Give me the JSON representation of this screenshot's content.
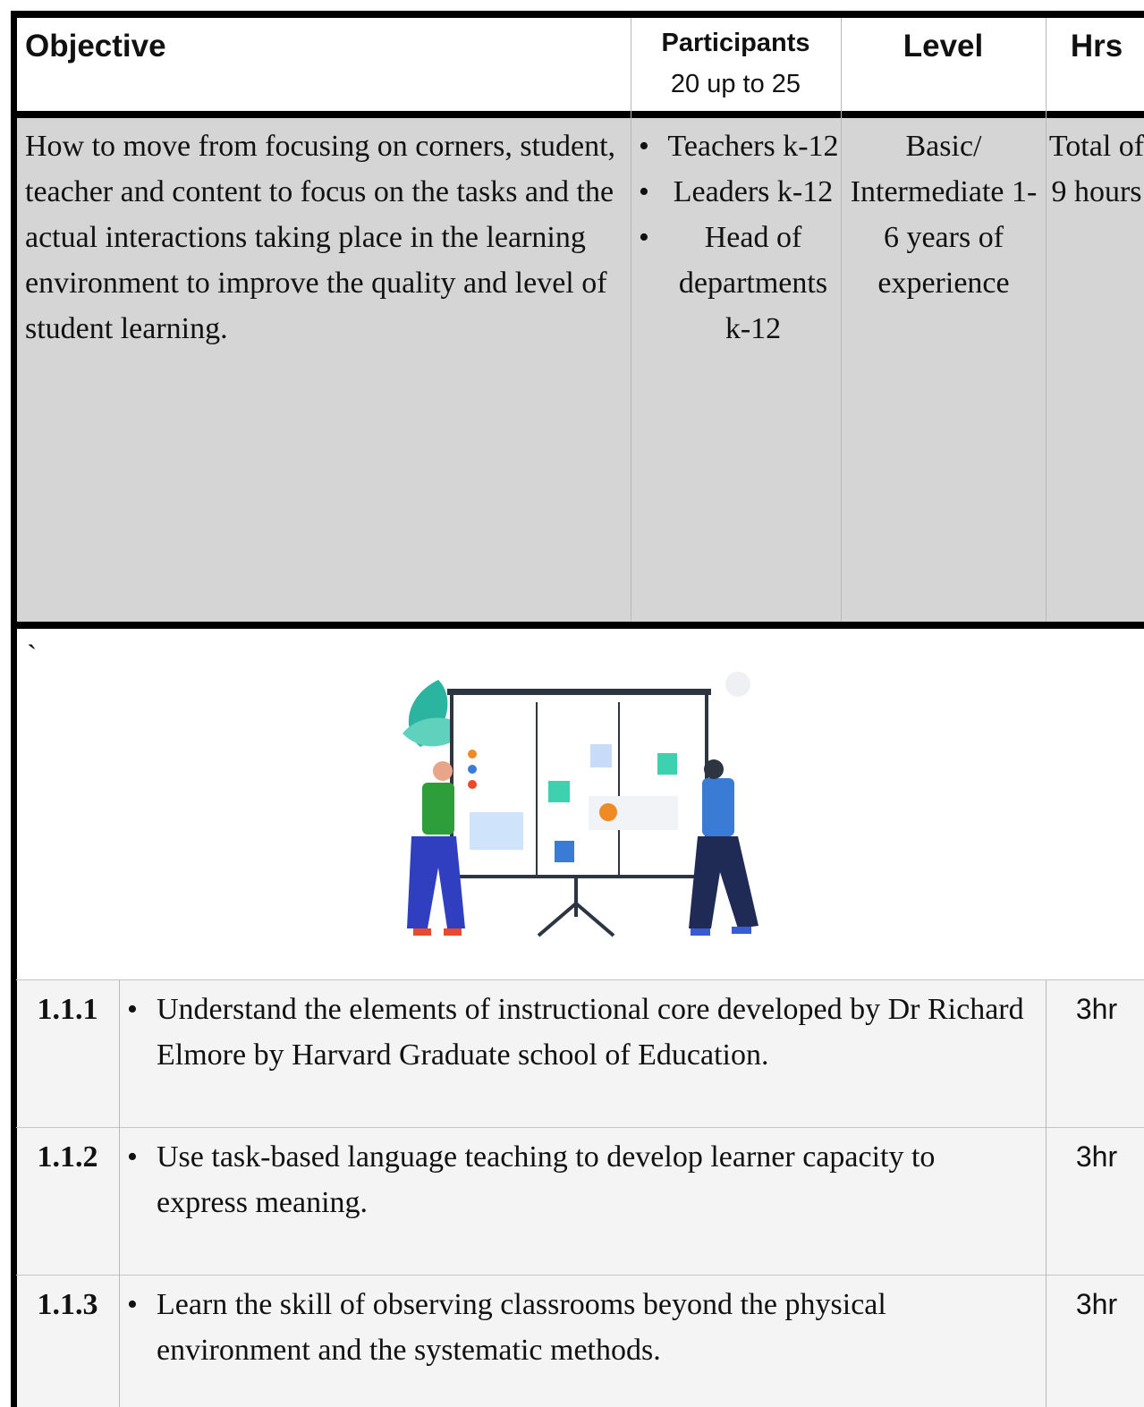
{
  "header": {
    "objective": "Objective",
    "participants": "Participants",
    "participants_count": "20 up to 25",
    "level": "Level",
    "hrs": "Hrs"
  },
  "summary": {
    "objective": "How to move from focusing on corners, student, teacher and content to focus on the tasks and the actual interactions taking place in the learning environment to improve the quality and level of student learning.",
    "participants": [
      "Teachers k-12",
      "Leaders k-12",
      "Head of departments k-12"
    ],
    "level": "Basic/ Intermediate 1-6 years of experience",
    "hours": "Total of 9 hours"
  },
  "note": "`",
  "modules": [
    {
      "id": "1.1.1",
      "text": "Understand the elements of instructional core developed by Dr Richard Elmore by Harvard Graduate school of Education.",
      "hours": "3hr"
    },
    {
      "id": "1.1.2",
      "text": "Use task-based language teaching to develop learner capacity to express meaning.",
      "hours": "3hr"
    },
    {
      "id": "1.1.3",
      "text": "Learn the skill of observing classrooms beyond the physical environment and the systematic methods.",
      "hours": "3hr"
    }
  ]
}
